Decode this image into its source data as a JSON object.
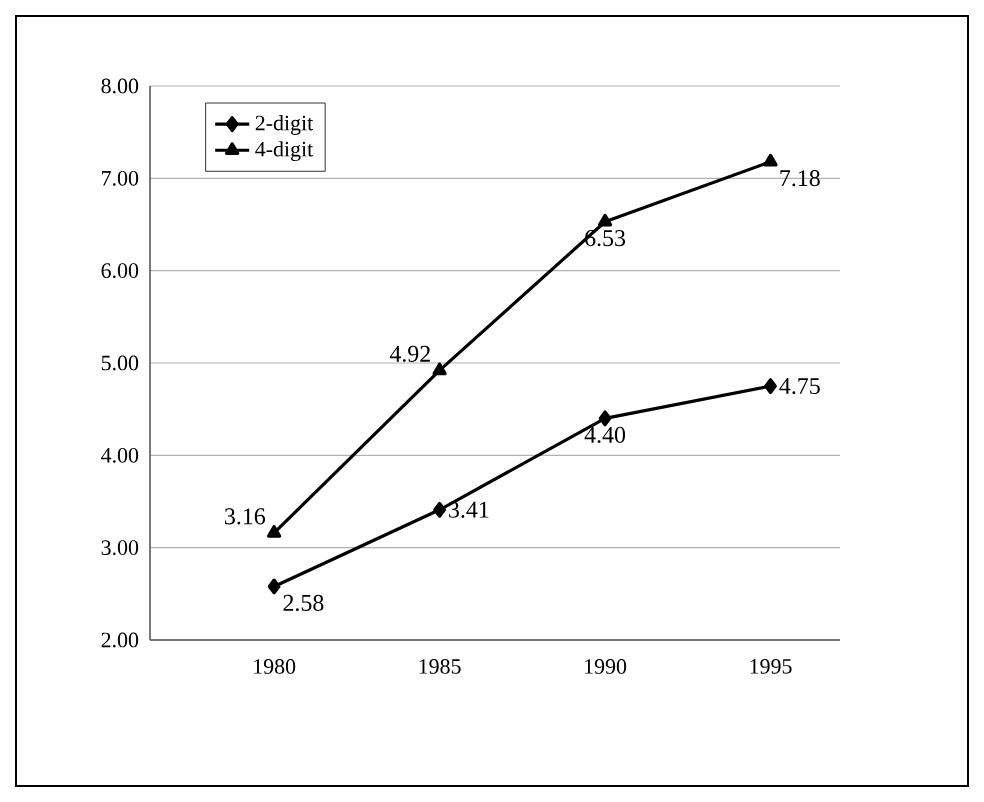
{
  "chart_data": {
    "type": "line",
    "categories": [
      "1980",
      "1985",
      "1990",
      "1995"
    ],
    "series": [
      {
        "name": "2-digit",
        "color": "#000000",
        "marker": "diamond",
        "values": [
          2.58,
          3.41,
          4.4,
          4.75
        ],
        "value_labels": [
          "2.58",
          "3.41",
          "4.40",
          "4.75"
        ]
      },
      {
        "name": "4-digit",
        "color": "#000000",
        "marker": "triangle",
        "values": [
          3.16,
          4.92,
          6.53,
          7.18
        ],
        "value_labels": [
          "3.16",
          "4.92",
          "6.53",
          "7.18"
        ]
      }
    ],
    "ylim": [
      2,
      8
    ],
    "yticks": [
      {
        "value": 2,
        "label": "2.00"
      },
      {
        "value": 3,
        "label": "3.00"
      },
      {
        "value": 4,
        "label": "4.00"
      },
      {
        "value": 5,
        "label": "5.00"
      },
      {
        "value": 6,
        "label": "6.00"
      },
      {
        "value": 7,
        "label": "7.00"
      },
      {
        "value": 8,
        "label": "8.00"
      }
    ],
    "grid": "y",
    "legend": "top left",
    "line_style": "solid"
  }
}
